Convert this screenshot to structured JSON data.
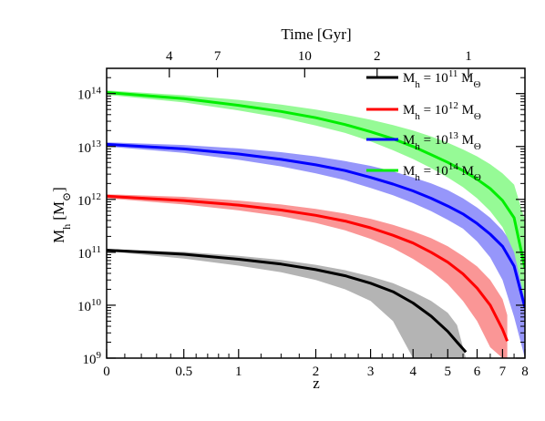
{
  "chart_data": {
    "type": "line",
    "xlabel": "z",
    "ylabel": "M",
    "ylabel_sub": "h",
    "ylabel_unit": "[M",
    "ylabel_unit_sub": "⊙",
    "ylabel_unit_close": "]",
    "top_axis_title": "Time [Gyr]",
    "x_transform": "log(1+z)",
    "y_scale": "log",
    "xlim": [
      0,
      8
    ],
    "ylim": [
      1000000000.0,
      300000000000000.0
    ],
    "x_ticks": [
      {
        "value": 0,
        "label": "0"
      },
      {
        "value": 0.5,
        "label": "0.5"
      },
      {
        "value": 1,
        "label": "1"
      },
      {
        "value": 2,
        "label": "2"
      },
      {
        "value": 3,
        "label": "3"
      },
      {
        "value": 4,
        "label": "4"
      },
      {
        "value": 5,
        "label": "5"
      },
      {
        "value": 6,
        "label": "6"
      },
      {
        "value": 7,
        "label": "7"
      },
      {
        "value": 8,
        "label": "8"
      }
    ],
    "y_ticks": [
      {
        "value": 1000000000.0,
        "base": "10",
        "exp": "9"
      },
      {
        "value": 10000000000.0,
        "base": "10",
        "exp": "10"
      },
      {
        "value": 100000000000.0,
        "base": "10",
        "exp": "11"
      },
      {
        "value": 1000000000000.0,
        "base": "10",
        "exp": "12"
      },
      {
        "value": 10000000000000.0,
        "base": "10",
        "exp": "13"
      },
      {
        "value": 100000000000000.0,
        "base": "10",
        "exp": "14"
      }
    ],
    "top_ticks": [
      {
        "z": 1.83,
        "label": "10"
      },
      {
        "z": 0.79,
        "label": "7"
      },
      {
        "z": 0.39,
        "label": "4"
      },
      {
        "z": 3.14,
        "label": "2"
      },
      {
        "z": 5.69,
        "label": "1"
      }
    ],
    "legend_position": "top-right",
    "series": [
      {
        "legend_prefix": "M",
        "legend_sub": "h",
        "legend_eq": " = 10",
        "legend_exp": "11",
        "legend_unit": " M",
        "legend_unit_sub": "Θ",
        "color": "#000000",
        "band_color": "#b4b4b4",
        "z": [
          0,
          0.5,
          1,
          1.5,
          2,
          2.5,
          3,
          3.5,
          4,
          4.5,
          5,
          5.3,
          5.6
        ],
        "median": [
          110000000000.0,
          92000000000.0,
          74000000000.0,
          60000000000.0,
          47000000000.0,
          36000000000.0,
          26000000000.0,
          18000000000.0,
          11000000000.0,
          6200000000.0,
          3200000000.0,
          2000000000.0,
          1300000000.0
        ],
        "upper": [
          115000000000.0,
          102000000000.0,
          86000000000.0,
          72000000000.0,
          58000000000.0,
          46000000000.0,
          35000000000.0,
          26000000000.0,
          18000000000.0,
          12000000000.0,
          7200000000.0,
          4200000000.0,
          1000000000.0
        ],
        "lower": [
          105000000000.0,
          76000000000.0,
          56000000000.0,
          42000000000.0,
          30000000000.0,
          20000000000.0,
          12000000000.0,
          5000000000.0,
          1000000000.0,
          1000000000.0,
          1000000000.0,
          1000000000.0,
          1000000000.0
        ]
      },
      {
        "legend_prefix": "M",
        "legend_sub": "h",
        "legend_eq": " = 10",
        "legend_exp": "12",
        "legend_unit": " M",
        "legend_unit_sub": "Θ",
        "color": "#ff0000",
        "band_color": "#fa9696",
        "z": [
          0,
          0.5,
          1,
          1.5,
          2,
          2.5,
          3,
          3.5,
          4,
          4.5,
          5,
          5.5,
          6,
          6.5,
          7,
          7.2
        ],
        "median": [
          1150000000000.0,
          950000000000.0,
          780000000000.0,
          630000000000.0,
          500000000000.0,
          390000000000.0,
          290000000000.0,
          210000000000.0,
          150000000000.0,
          100000000000.0,
          65000000000.0,
          39000000000.0,
          21000000000.0,
          10000000000.0,
          3500000000.0,
          2100000000.0
        ],
        "upper": [
          1250000000000.0,
          1120000000000.0,
          950000000000.0,
          800000000000.0,
          660000000000.0,
          540000000000.0,
          430000000000.0,
          330000000000.0,
          250000000000.0,
          185000000000.0,
          130000000000.0,
          85000000000.0,
          54000000000.0,
          30000000000.0,
          13000000000.0,
          6500000000.0
        ],
        "lower": [
          1050000000000.0,
          800000000000.0,
          620000000000.0,
          480000000000.0,
          360000000000.0,
          260000000000.0,
          180000000000.0,
          120000000000.0,
          75000000000.0,
          45000000000.0,
          25000000000.0,
          12000000000.0,
          5000000000.0,
          1600000000.0,
          1000000000.0,
          1000000000.0
        ]
      },
      {
        "legend_prefix": "M",
        "legend_sub": "h",
        "legend_eq": " = 10",
        "legend_exp": "13",
        "legend_unit": " M",
        "legend_unit_sub": "Θ",
        "color": "#0000ff",
        "band_color": "#9696fa",
        "z": [
          0,
          0.5,
          1,
          1.5,
          2,
          2.5,
          3,
          3.5,
          4,
          4.5,
          5,
          5.5,
          6,
          6.5,
          7,
          7.5,
          8
        ],
        "median": [
          11000000000000.0,
          9000000000000.0,
          7200000000000.0,
          5700000000000.0,
          4500000000000.0,
          3500000000000.0,
          2600000000000.0,
          1950000000000.0,
          1450000000000.0,
          1050000000000.0,
          750000000000.0,
          530000000000.0,
          350000000000.0,
          220000000000.0,
          130000000000.0,
          55000000000.0,
          9000000000.0
        ],
        "upper": [
          12000000000000.0,
          10700000000000.0,
          9200000000000.0,
          7800000000000.0,
          6500000000000.0,
          5300000000000.0,
          4300000000000.0,
          3400000000000.0,
          2600000000000.0,
          2000000000000.0,
          1500000000000.0,
          1050000000000.0,
          700000000000.0,
          450000000000.0,
          260000000000.0,
          130000000000.0,
          40000000000.0
        ],
        "lower": [
          10000000000000.0,
          7600000000000.0,
          5600000000000.0,
          4200000000000.0,
          3100000000000.0,
          2300000000000.0,
          1650000000000.0,
          1200000000000.0,
          850000000000.0,
          600000000000.0,
          410000000000.0,
          280000000000.0,
          160000000000.0,
          80000000000.0,
          30000000000.0,
          6000000000.0,
          1000000000.0
        ]
      },
      {
        "legend_prefix": "M",
        "legend_sub": "h",
        "legend_eq": " = 10",
        "legend_exp": "14",
        "legend_unit": " M",
        "legend_unit_sub": "Θ",
        "color": "#00ee00",
        "band_color": "#96fa96",
        "z": [
          0,
          0.5,
          1,
          1.5,
          2,
          2.5,
          3,
          3.5,
          4,
          4.5,
          5,
          5.5,
          6,
          6.5,
          7,
          7.5,
          8
        ],
        "median": [
          105000000000000.0,
          80000000000000.0,
          60000000000000.0,
          46000000000000.0,
          35000000000000.0,
          26000000000000.0,
          19000000000000.0,
          14000000000000.0,
          10000000000000.0,
          7000000000000.0,
          5000000000000.0,
          3500000000000.0,
          2400000000000.0,
          1600000000000.0,
          950000000000.0,
          450000000000.0,
          50000000000.0
        ],
        "upper": [
          115000000000000.0,
          93000000000000.0,
          76000000000000.0,
          62000000000000.0,
          50000000000000.0,
          40000000000000.0,
          32000000000000.0,
          25500000000000.0,
          20000000000000.0,
          15500000000000.0,
          11800000000000.0,
          8800000000000.0,
          6500000000000.0,
          4600000000000.0,
          3100000000000.0,
          1900000000000.0,
          400000000000.0
        ],
        "lower": [
          95000000000000.0,
          68000000000000.0,
          48000000000000.0,
          35000000000000.0,
          25000000000000.0,
          18000000000000.0,
          12500000000000.0,
          8500000000000.0,
          5800000000000.0,
          3900000000000.0,
          2600000000000.0,
          1700000000000.0,
          1050000000000.0,
          600000000000.0,
          300000000000.0,
          100000000000.0,
          12000000000.0
        ]
      }
    ]
  }
}
